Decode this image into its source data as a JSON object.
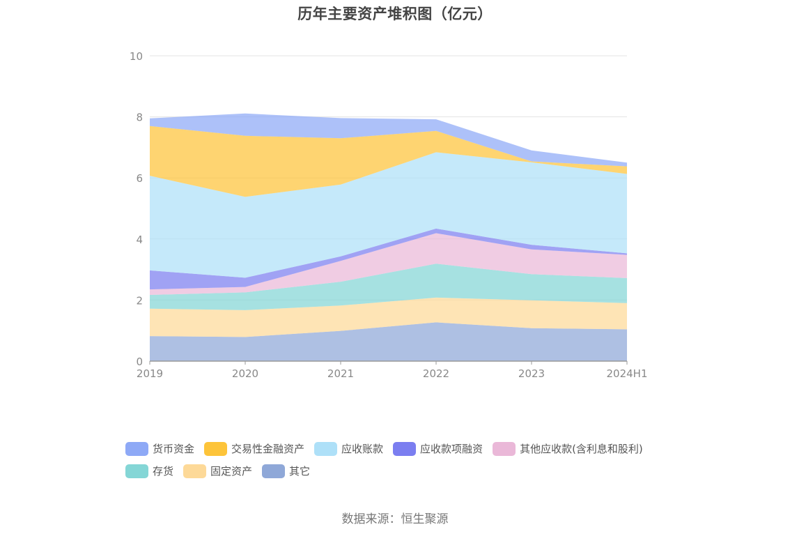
{
  "title": "历年主要资产堆积图（亿元）",
  "source": "数据来源：恒生聚源",
  "chart_data": {
    "type": "area",
    "stacked": true,
    "title": "历年主要资产堆积图（亿元）",
    "categories": [
      "2019",
      "2020",
      "2021",
      "2022",
      "2023",
      "2024H1"
    ],
    "y_ticks": [
      "0",
      "2",
      "4",
      "6",
      "8",
      "10"
    ],
    "ylim": [
      0,
      10
    ],
    "grid": true,
    "legend_position": "bottom",
    "series": [
      {
        "name": "其它",
        "color": "#8fa8d8",
        "values": [
          0.82,
          0.79,
          0.99,
          1.27,
          1.08,
          1.04
        ]
      },
      {
        "name": "固定资产",
        "color": "#fdd998",
        "values": [
          0.9,
          0.88,
          0.83,
          0.81,
          0.91,
          0.86
        ]
      },
      {
        "name": "存货",
        "color": "#84d6d6",
        "values": [
          0.45,
          0.58,
          0.78,
          1.11,
          0.86,
          0.82
        ]
      },
      {
        "name": "其他应收款(含利息和股利)",
        "color": "#eab8d8",
        "values": [
          0.18,
          0.18,
          0.68,
          1.0,
          0.81,
          0.76
        ]
      },
      {
        "name": "应收款项融资",
        "color": "#7b7ef0",
        "values": [
          0.62,
          0.3,
          0.15,
          0.15,
          0.15,
          0.05
        ]
      },
      {
        "name": "应收账款",
        "color": "#aee0f8",
        "values": [
          3.1,
          2.65,
          2.35,
          2.5,
          2.7,
          2.6
        ]
      },
      {
        "name": "交易性金融资产",
        "color": "#fdc43a",
        "values": [
          1.63,
          2.0,
          1.52,
          0.7,
          0.03,
          0.25
        ]
      },
      {
        "name": "货币资金",
        "color": "#8ea9f6",
        "values": [
          0.25,
          0.73,
          0.66,
          0.38,
          0.36,
          0.12
        ]
      }
    ]
  },
  "legend": {
    "row1": [
      "货币资金",
      "交易性金融资产",
      "应收账款",
      "应收款项融资",
      "其他应收款(含利息和股利)"
    ],
    "row2": [
      "存货",
      "固定资产",
      "其它"
    ]
  },
  "legend_colors": {
    "row1": [
      "#8ea9f6",
      "#fdc43a",
      "#aee0f8",
      "#7b7ef0",
      "#eab8d8"
    ],
    "row2": [
      "#84d6d6",
      "#fdd998",
      "#8fa8d8"
    ]
  }
}
